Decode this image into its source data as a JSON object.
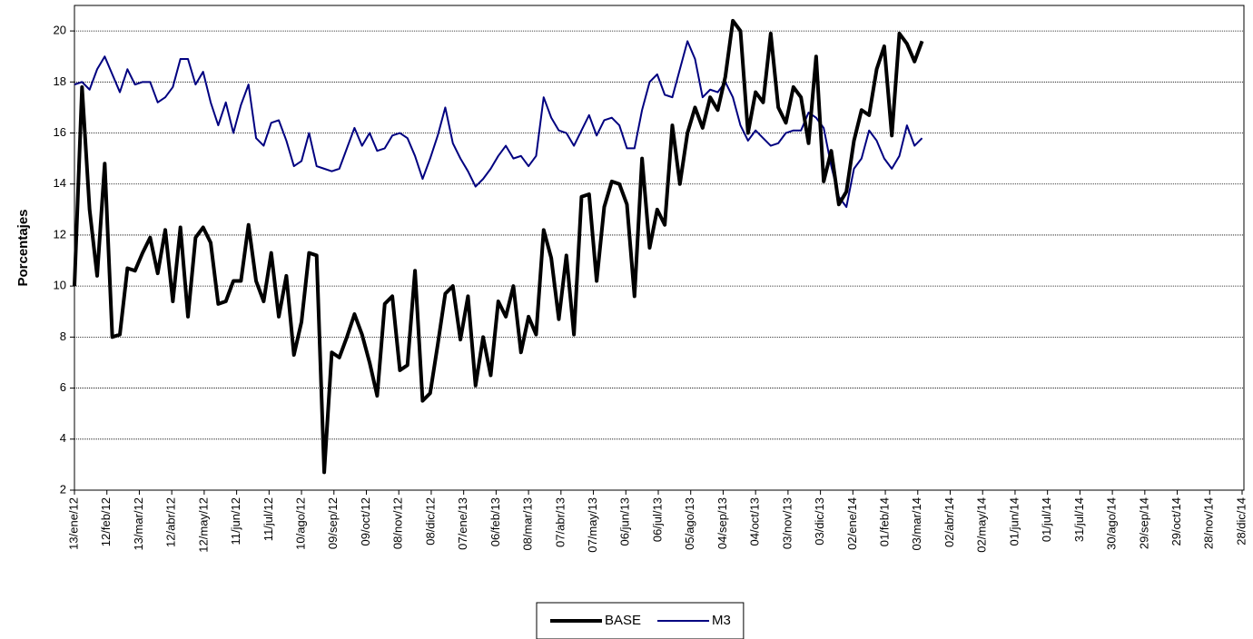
{
  "chart_data": {
    "type": "line",
    "y_label": "Porcentajes",
    "x": [
      "2012-01-13",
      "2012-01-20",
      "2012-01-27",
      "2012-02-03",
      "2012-02-10",
      "2012-02-17",
      "2012-02-24",
      "2012-03-02",
      "2012-03-09",
      "2012-03-16",
      "2012-03-23",
      "2012-03-30",
      "2012-04-06",
      "2012-04-13",
      "2012-04-20",
      "2012-04-27",
      "2012-05-04",
      "2012-05-11",
      "2012-05-18",
      "2012-05-25",
      "2012-06-01",
      "2012-06-08",
      "2012-06-15",
      "2012-06-22",
      "2012-06-29",
      "2012-07-06",
      "2012-07-13",
      "2012-07-20",
      "2012-07-27",
      "2012-08-03",
      "2012-08-10",
      "2012-08-17",
      "2012-08-24",
      "2012-08-31",
      "2012-09-07",
      "2012-09-14",
      "2012-09-21",
      "2012-09-28",
      "2012-10-05",
      "2012-10-12",
      "2012-10-19",
      "2012-10-26",
      "2012-11-02",
      "2012-11-09",
      "2012-11-16",
      "2012-11-23",
      "2012-11-30",
      "2012-12-07",
      "2012-12-14",
      "2012-12-21",
      "2012-12-28",
      "2013-01-04",
      "2013-01-11",
      "2013-01-18",
      "2013-01-25",
      "2013-02-01",
      "2013-02-08",
      "2013-02-15",
      "2013-02-22",
      "2013-03-01",
      "2013-03-08",
      "2013-03-15",
      "2013-03-22",
      "2013-03-29",
      "2013-04-05",
      "2013-04-12",
      "2013-04-19",
      "2013-04-26",
      "2013-05-03",
      "2013-05-10",
      "2013-05-17",
      "2013-05-24",
      "2013-05-31",
      "2013-06-07",
      "2013-06-14",
      "2013-06-21",
      "2013-06-28",
      "2013-07-05",
      "2013-07-12",
      "2013-07-19",
      "2013-07-26",
      "2013-08-02",
      "2013-08-09",
      "2013-08-16",
      "2013-08-23",
      "2013-08-30",
      "2013-09-06",
      "2013-09-13",
      "2013-09-20",
      "2013-09-27",
      "2013-10-04",
      "2013-10-11",
      "2013-10-18",
      "2013-10-25",
      "2013-11-01",
      "2013-11-08",
      "2013-11-15",
      "2013-11-22",
      "2013-11-29",
      "2013-12-06",
      "2013-12-13",
      "2013-12-20",
      "2013-12-27",
      "2014-01-03",
      "2014-01-10",
      "2014-01-17",
      "2014-01-24",
      "2014-01-31",
      "2014-02-07",
      "2014-02-14",
      "2014-02-21",
      "2014-02-28",
      "2014-03-07"
    ],
    "series": [
      {
        "name": "BASE",
        "color": "#000000",
        "width": 4,
        "values": [
          10,
          17.8,
          13,
          10.4,
          14.8,
          8,
          8.1,
          10.7,
          10.6,
          11.3,
          11.9,
          10.5,
          12.2,
          9.4,
          12.3,
          8.8,
          11.9,
          12.3,
          11.7,
          9.3,
          9.4,
          10.2,
          10.2,
          12.4,
          10.2,
          9.4,
          11.3,
          8.8,
          10.4,
          7.3,
          8.6,
          11.3,
          11.2,
          2.7,
          7.4,
          7.2,
          8,
          8.9,
          8.1,
          7,
          5.7,
          9.3,
          9.6,
          6.7,
          6.9,
          10.6,
          5.5,
          5.8,
          7.7,
          9.7,
          10,
          7.9,
          9.6,
          6.1,
          8,
          6.5,
          9.4,
          8.8,
          10,
          7.4,
          8.8,
          8.1,
          12.2,
          11.1,
          8.7,
          11.2,
          8.1,
          13.5,
          13.6,
          10.2,
          13.1,
          14.1,
          14,
          13.2,
          9.6,
          15,
          11.5,
          13,
          12.4,
          16.3,
          14,
          16,
          17,
          16.2,
          17.4,
          16.9,
          18.2,
          20.4,
          20,
          16,
          17.6,
          17.2,
          19.9,
          17,
          16.4,
          17.8,
          17.4,
          15.6,
          19,
          14.1,
          15.3,
          13.2,
          13.7,
          15.7,
          16.9,
          16.7,
          18.5,
          19.4,
          15.9,
          19.9,
          19.5,
          18.8,
          19.6
        ]
      },
      {
        "name": "M3",
        "color": "#000080",
        "width": 2,
        "values": [
          17.9,
          18,
          17.7,
          18.5,
          19,
          18.3,
          17.6,
          18.5,
          17.9,
          18,
          18,
          17.2,
          17.4,
          17.8,
          18.9,
          18.9,
          17.9,
          18.4,
          17.2,
          16.3,
          17.2,
          16,
          17.1,
          17.9,
          15.8,
          15.5,
          16.4,
          16.5,
          15.7,
          14.7,
          14.9,
          16,
          14.7,
          14.6,
          14.5,
          14.6,
          15.4,
          16.2,
          15.5,
          16,
          15.3,
          15.4,
          15.9,
          16,
          15.8,
          15.1,
          14.2,
          15,
          15.9,
          17,
          15.6,
          15,
          14.5,
          13.9,
          14.2,
          14.6,
          15.1,
          15.5,
          15,
          15.1,
          14.7,
          15.1,
          17.4,
          16.6,
          16.1,
          16,
          15.5,
          16.1,
          16.7,
          15.9,
          16.5,
          16.6,
          16.3,
          15.4,
          15.4,
          16.9,
          18,
          18.3,
          17.5,
          17.4,
          18.5,
          19.6,
          18.9,
          17.4,
          17.7,
          17.6,
          18,
          17.4,
          16.3,
          15.7,
          16.1,
          15.8,
          15.5,
          15.6,
          16,
          16.1,
          16.1,
          16.8,
          16.6,
          16.2,
          14.7,
          13.5,
          13.1,
          14.6,
          15,
          16.1,
          15.7,
          15,
          14.6,
          15.1,
          16.3,
          15.5,
          15.8
        ]
      }
    ],
    "xlim": [
      "2012-01-13",
      "2014-12-28"
    ],
    "xticks": [
      {
        "value": "2012-01-13",
        "label": "13/ene/12"
      },
      {
        "value": "2012-02-12",
        "label": "12/feb/12"
      },
      {
        "value": "2012-03-13",
        "label": "13/mar/12"
      },
      {
        "value": "2012-04-12",
        "label": "12/abr/12"
      },
      {
        "value": "2012-05-12",
        "label": "12/may/12"
      },
      {
        "value": "2012-06-11",
        "label": "11/jun/12"
      },
      {
        "value": "2012-07-11",
        "label": "11/jul/12"
      },
      {
        "value": "2012-08-10",
        "label": "10/ago/12"
      },
      {
        "value": "2012-09-09",
        "label": "09/sep/12"
      },
      {
        "value": "2012-10-09",
        "label": "09/oct/12"
      },
      {
        "value": "2012-11-08",
        "label": "08/nov/12"
      },
      {
        "value": "2012-12-08",
        "label": "08/dic/12"
      },
      {
        "value": "2013-01-07",
        "label": "07/ene/13"
      },
      {
        "value": "2013-02-06",
        "label": "06/feb/13"
      },
      {
        "value": "2013-03-08",
        "label": "08/mar/13"
      },
      {
        "value": "2013-04-07",
        "label": "07/abr/13"
      },
      {
        "value": "2013-05-07",
        "label": "07/may/13"
      },
      {
        "value": "2013-06-06",
        "label": "06/jun/13"
      },
      {
        "value": "2013-07-06",
        "label": "06/jul/13"
      },
      {
        "value": "2013-08-05",
        "label": "05/ago/13"
      },
      {
        "value": "2013-09-04",
        "label": "04/sep/13"
      },
      {
        "value": "2013-10-04",
        "label": "04/oct/13"
      },
      {
        "value": "2013-11-03",
        "label": "03/nov/13"
      },
      {
        "value": "2013-12-03",
        "label": "03/dic/13"
      },
      {
        "value": "2014-01-02",
        "label": "02/ene/14"
      },
      {
        "value": "2014-02-01",
        "label": "01/feb/14"
      },
      {
        "value": "2014-03-03",
        "label": "03/mar/14"
      },
      {
        "value": "2014-04-02",
        "label": "02/abr/14"
      },
      {
        "value": "2014-05-02",
        "label": "02/may/14"
      },
      {
        "value": "2014-06-01",
        "label": "01/jun/14"
      },
      {
        "value": "2014-07-01",
        "label": "01/jul/14"
      },
      {
        "value": "2014-07-31",
        "label": "31/jul/14"
      },
      {
        "value": "2014-08-30",
        "label": "30/ago/14"
      },
      {
        "value": "2014-09-29",
        "label": "29/sep/14"
      },
      {
        "value": "2014-10-29",
        "label": "29/oct/14"
      },
      {
        "value": "2014-11-28",
        "label": "28/nov/14"
      },
      {
        "value": "2014-12-28",
        "label": "28/dic/14"
      }
    ],
    "ylim": [
      2,
      21
    ],
    "yticks": [
      2,
      4,
      6,
      8,
      10,
      12,
      14,
      16,
      18,
      20
    ],
    "grid": true,
    "legend": "bottom"
  }
}
